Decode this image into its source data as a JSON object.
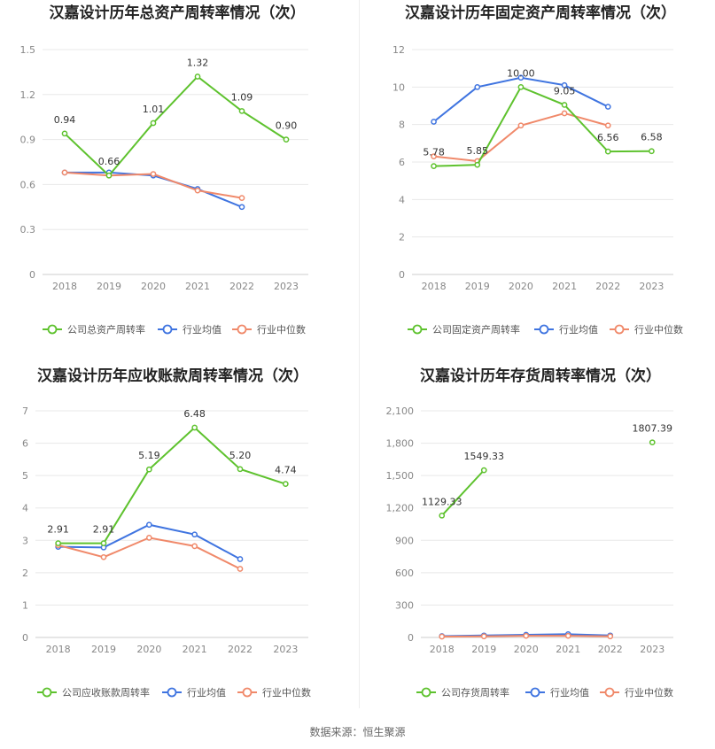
{
  "colors": {
    "company": "#5ec22e",
    "industry_avg": "#3f74e0",
    "industry_median": "#f0896a"
  },
  "source": "数据来源：恒生聚源",
  "chart_data": [
    {
      "type": "line",
      "title": "汉嘉设计历年总资产周转率情况（次）",
      "categories": [
        "2018",
        "2019",
        "2020",
        "2021",
        "2022",
        "2023"
      ],
      "ylim": [
        0,
        1.5
      ],
      "yticks": [
        "0",
        "0.3",
        "0.6",
        "0.9",
        "1.2",
        "1.5"
      ],
      "ytick_values": [
        0,
        0.3,
        0.6,
        0.9,
        1.2,
        1.5
      ],
      "grid": true,
      "legend_position": "bottom",
      "series": [
        {
          "name": "公司总资产周转率",
          "color_key": "company",
          "values": [
            0.94,
            0.66,
            1.01,
            1.32,
            1.09,
            0.9
          ],
          "labels": [
            "0.94",
            "0.66",
            "1.01",
            "1.32",
            "1.09",
            "0.90"
          ]
        },
        {
          "name": "行业均值",
          "color_key": "industry_avg",
          "values": [
            0.68,
            0.68,
            0.66,
            0.57,
            0.45,
            null
          ]
        },
        {
          "name": "行业中位数",
          "color_key": "industry_median",
          "values": [
            0.68,
            0.66,
            0.67,
            0.56,
            0.51,
            null
          ]
        }
      ]
    },
    {
      "type": "line",
      "title": "汉嘉设计历年固定资产周转率情况（次）",
      "categories": [
        "2018",
        "2019",
        "2020",
        "2021",
        "2022",
        "2023"
      ],
      "ylim": [
        0,
        12
      ],
      "yticks": [
        "0",
        "2",
        "4",
        "6",
        "8",
        "10",
        "12"
      ],
      "ytick_values": [
        0,
        2,
        4,
        6,
        8,
        10,
        12
      ],
      "grid": true,
      "legend_position": "bottom",
      "series": [
        {
          "name": "公司固定资产周转率",
          "color_key": "company",
          "values": [
            5.78,
            5.85,
            10.0,
            9.05,
            6.56,
            6.58
          ],
          "labels": [
            "5.78",
            "5.85",
            "10.00",
            "9.05",
            "6.56",
            "6.58"
          ]
        },
        {
          "name": "行业均值",
          "color_key": "industry_avg",
          "values": [
            8.15,
            10.0,
            10.5,
            10.1,
            8.95,
            null
          ]
        },
        {
          "name": "行业中位数",
          "color_key": "industry_median",
          "values": [
            6.3,
            6.05,
            7.95,
            8.6,
            7.95,
            null
          ]
        }
      ]
    },
    {
      "type": "line",
      "title": "汉嘉设计历年应收账款周转率情况（次）",
      "categories": [
        "2018",
        "2019",
        "2020",
        "2021",
        "2022",
        "2023"
      ],
      "ylim": [
        0,
        7
      ],
      "yticks": [
        "0",
        "1",
        "2",
        "3",
        "4",
        "5",
        "6",
        "7"
      ],
      "ytick_values": [
        0,
        1,
        2,
        3,
        4,
        5,
        6,
        7
      ],
      "grid": true,
      "legend_position": "bottom",
      "series": [
        {
          "name": "公司应收账款周转率",
          "color_key": "company",
          "values": [
            2.91,
            2.91,
            5.19,
            6.48,
            5.2,
            4.74
          ],
          "labels": [
            "2.91",
            "2.91",
            "5.19",
            "6.48",
            "5.20",
            "4.74"
          ]
        },
        {
          "name": "行业均值",
          "color_key": "industry_avg",
          "values": [
            2.8,
            2.78,
            3.48,
            3.18,
            2.42,
            null
          ]
        },
        {
          "name": "行业中位数",
          "color_key": "industry_median",
          "values": [
            2.85,
            2.48,
            3.08,
            2.82,
            2.12,
            null
          ]
        }
      ]
    },
    {
      "type": "line",
      "title": "汉嘉设计历年存货周转率情况（次）",
      "categories": [
        "2018",
        "2019",
        "2020",
        "2021",
        "2022",
        "2023"
      ],
      "ylim": [
        0,
        2100
      ],
      "yticks": [
        "0",
        "300",
        "600",
        "900",
        "1,200",
        "1,500",
        "1,800",
        "2,100"
      ],
      "ytick_values": [
        0,
        300,
        600,
        900,
        1200,
        1500,
        1800,
        2100
      ],
      "grid": true,
      "legend_position": "bottom",
      "series": [
        {
          "name": "公司存货周转率",
          "color_key": "company",
          "values": [
            1129.33,
            1549.33,
            null,
            null,
            null,
            1807.39
          ],
          "labels": [
            "1129.33",
            "1549.33",
            "",
            "",
            "",
            "1807.39"
          ]
        },
        {
          "name": "行业均值",
          "color_key": "industry_avg",
          "values": [
            12,
            18,
            25,
            30,
            18,
            null
          ]
        },
        {
          "name": "行业中位数",
          "color_key": "industry_median",
          "values": [
            8,
            10,
            15,
            15,
            10,
            null
          ]
        }
      ]
    }
  ]
}
